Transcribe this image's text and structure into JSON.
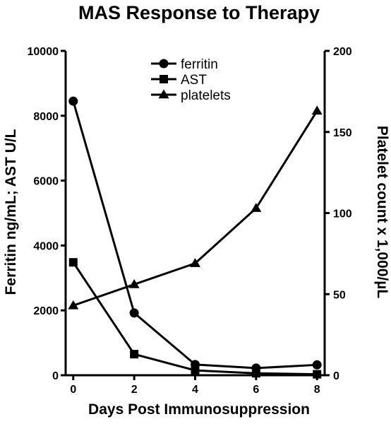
{
  "chart_data": {
    "type": "line",
    "title": "MAS Response to Therapy",
    "xlabel": "Days Post Immunosuppression",
    "ylabel_left": "Ferritin ng/mL; AST U/L",
    "ylabel_right": "Platelet count x 1,000/µL",
    "x": [
      0,
      2,
      4,
      6,
      8
    ],
    "xlim": [
      -0.25,
      8.25
    ],
    "x_ticks": [
      "0",
      "2",
      "4",
      "6",
      "8"
    ],
    "ylim_left": [
      0,
      10000
    ],
    "y_ticks_left": [
      "0",
      "2000",
      "4000",
      "6000",
      "8000",
      "10000"
    ],
    "ylim_right": [
      0,
      200
    ],
    "y_ticks_right": [
      "0",
      "50",
      "100",
      "150",
      "200"
    ],
    "grid": false,
    "legend_position": "top-center",
    "series": [
      {
        "name": "ferritin",
        "marker": "circle",
        "axis": "left",
        "values": [
          8450,
          1920,
          330,
          220,
          320
        ]
      },
      {
        "name": "AST",
        "marker": "square",
        "axis": "left",
        "values": [
          3480,
          650,
          150,
          60,
          30
        ]
      },
      {
        "name": "platelets",
        "marker": "triangle",
        "axis": "right",
        "values": [
          43,
          56,
          69,
          103,
          163
        ]
      }
    ],
    "line_color": "#000000"
  }
}
